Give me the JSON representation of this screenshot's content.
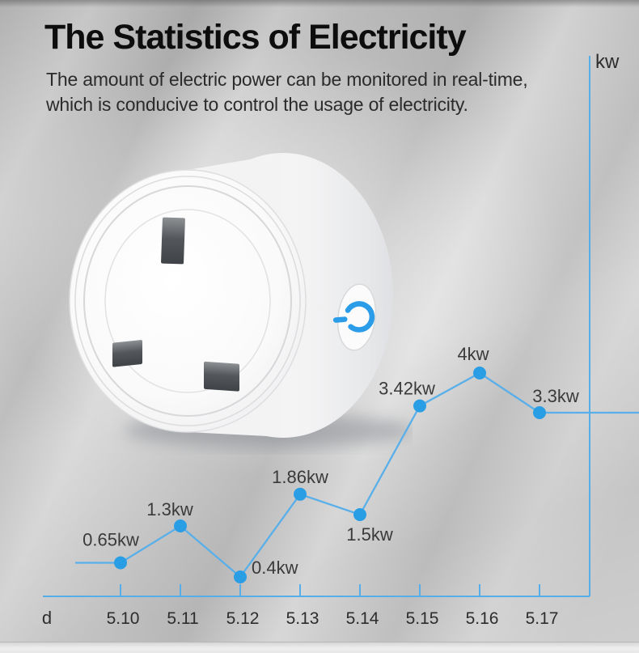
{
  "page": {
    "heading": "The Statistics of Electricity",
    "subtitle_lines": [
      "The amount of electric power can be monitored in real-time,",
      "which is conducive to control the usage of electricity."
    ]
  },
  "product": {
    "icons": {
      "power_button": "power-icon"
    },
    "accent_color": "#2b9ce8"
  },
  "chart_data": {
    "type": "line",
    "categories": [
      "5.10",
      "5.11",
      "5.12",
      "5.13",
      "5.14",
      "5.15",
      "5.16",
      "5.17"
    ],
    "values": [
      0.65,
      1.3,
      0.4,
      1.86,
      1.5,
      3.42,
      4,
      3.3
    ],
    "point_labels": [
      "0.65kw",
      "1.3kw",
      "0.4kw",
      "1.86kw",
      "1.5kw",
      "3.42kw",
      "4kw",
      "3.3kw"
    ],
    "xlabel": "d",
    "ylabel": "kw",
    "ylim": [
      0,
      5
    ],
    "grid": false,
    "legend": false,
    "colors": {
      "line": "#58afe9",
      "dot": "#2a9ee5",
      "axis": "#55ade9",
      "point_label_text": "#3a3a3a",
      "tick_label_text": "#2d2d2d"
    }
  }
}
